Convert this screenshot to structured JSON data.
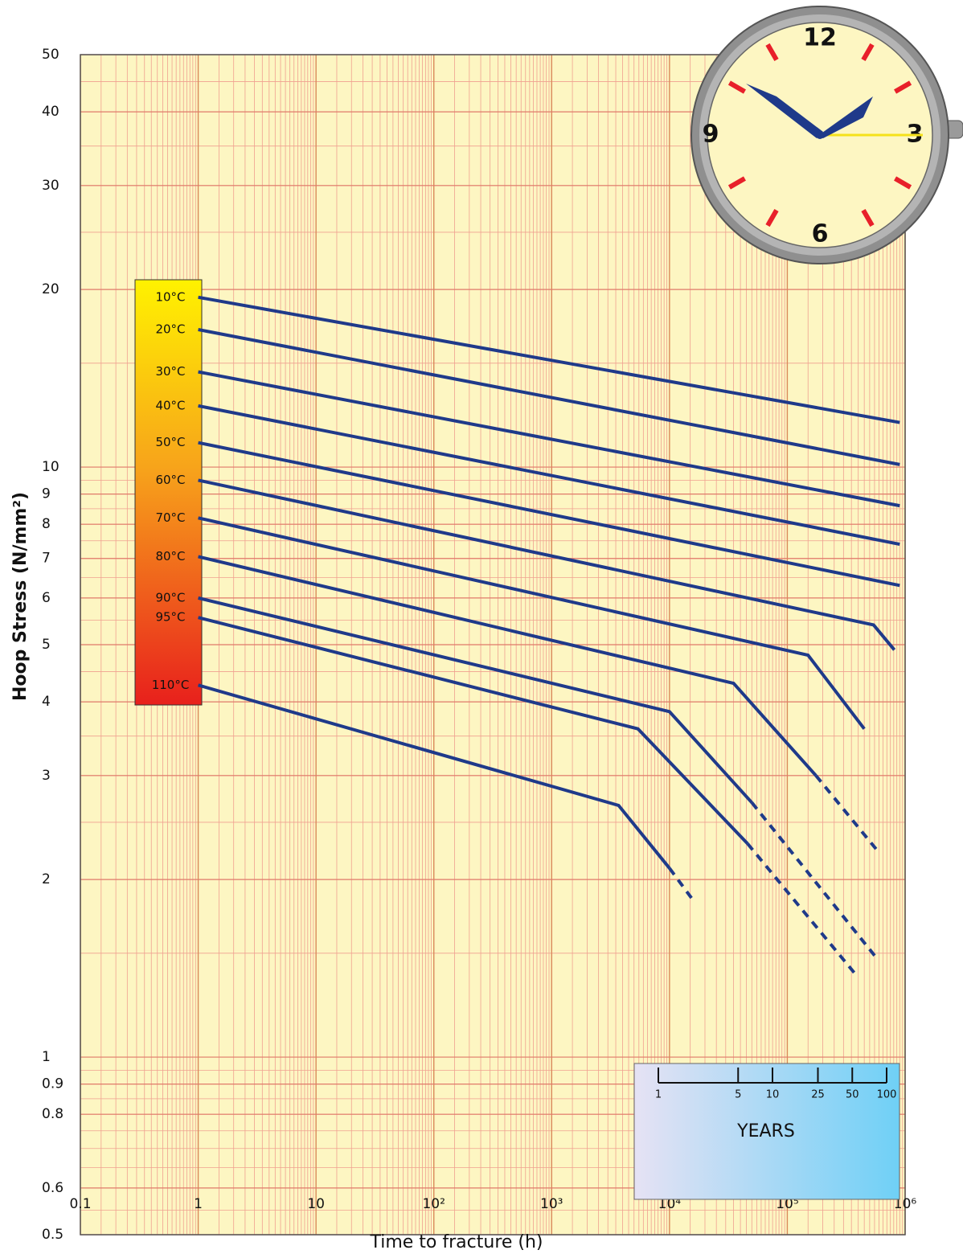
{
  "chart_data": {
    "type": "line",
    "x_label": "Time to fracture (h)",
    "y_label": "Hoop Stress (N/mm²)",
    "xscale": "log",
    "yscale": "log",
    "xlim": [
      0.1,
      1000000
    ],
    "ylim": [
      0.5,
      50
    ],
    "xticks": [
      0.1,
      1,
      10,
      {
        "value": 100,
        "label": "10²"
      },
      {
        "value": 1000,
        "label": "10³"
      },
      {
        "value": 10000,
        "label": "10⁴"
      },
      {
        "value": 100000,
        "label": "10⁵"
      },
      {
        "value": 1000000,
        "label": "10⁶"
      }
    ],
    "yticks": [
      0.5,
      0.6,
      0.8,
      0.9,
      1,
      2,
      3,
      4,
      5,
      6,
      7,
      8,
      9,
      10,
      20,
      30,
      40,
      50
    ],
    "grid": true,
    "series": [
      {
        "name": "10°C",
        "color": "#1f3a8a",
        "x": [
          1,
          900000
        ],
        "values": [
          19.4,
          11.9
        ]
      },
      {
        "name": "20°C",
        "color": "#1f3a8a",
        "x": [
          1,
          900000
        ],
        "values": [
          17.1,
          10.1
        ]
      },
      {
        "name": "30°C",
        "color": "#1f3a8a",
        "x": [
          1,
          900000
        ],
        "values": [
          14.5,
          8.6
        ]
      },
      {
        "name": "40°C",
        "color": "#1f3a8a",
        "x": [
          1,
          900000
        ],
        "values": [
          12.7,
          7.4
        ]
      },
      {
        "name": "50°C",
        "color": "#1f3a8a",
        "x": [
          1,
          900000
        ],
        "values": [
          11.0,
          6.3
        ]
      },
      {
        "name": "60°C",
        "color": "#1f3a8a",
        "x": [
          1,
          540000,
          810000
        ],
        "values": [
          9.5,
          5.4,
          4.9
        ]
      },
      {
        "name": "70°C",
        "color": "#1f3a8a",
        "x": [
          1,
          150000,
          450000
        ],
        "values": [
          8.2,
          4.8,
          3.6
        ]
      },
      {
        "name": "80°C",
        "color": "#1f3a8a",
        "x": [
          1,
          35000,
          175000
        ],
        "values": [
          7.05,
          4.3,
          3.0
        ],
        "extrapolated_x": [
          580000
        ],
        "extrapolated_values": [
          2.24
        ]
      },
      {
        "name": "90°C",
        "color": "#1f3a8a",
        "x": [
          1,
          10000,
          50000
        ],
        "values": [
          6.0,
          3.85,
          2.7
        ],
        "extrapolated_x": [
          560000
        ],
        "extrapolated_values": [
          1.48
        ]
      },
      {
        "name": "95°C",
        "color": "#1f3a8a",
        "x": [
          1,
          5400,
          46000
        ],
        "values": [
          5.56,
          3.6,
          2.3
        ],
        "extrapolated_x": [
          370000
        ],
        "extrapolated_values": [
          1.39
        ]
      },
      {
        "name": "110°C",
        "color": "#1f3a8a",
        "x": [
          1,
          3700,
          10000
        ],
        "values": [
          4.27,
          2.67,
          2.09
        ],
        "extrapolated_x": [
          15700
        ],
        "extrapolated_values": [
          1.85
        ]
      }
    ]
  },
  "years_inset": {
    "title": "YEARS",
    "ticks": [
      1,
      5,
      10,
      25,
      50,
      100
    ]
  },
  "clock": {
    "numerals": [
      "12",
      "3",
      "6",
      "9"
    ]
  }
}
